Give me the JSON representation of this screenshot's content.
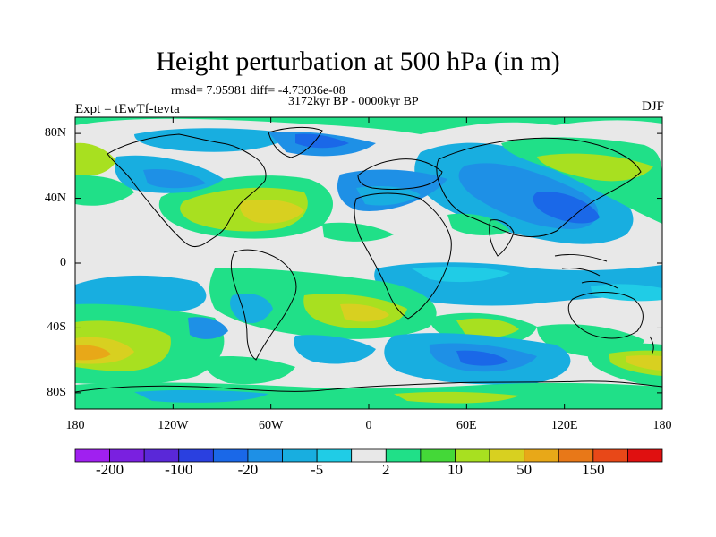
{
  "title": "Height perturbation at 500 hPa (in m)",
  "rmsd_line": "rmsd= 7.95981 diff= -4.73036e-08",
  "period": "3172kyr BP - 0000kyr BP",
  "experiment": "Expt = tEwTf-tevta",
  "season": "DJF",
  "map": {
    "projection": "cylindrical equidistant",
    "lon_range": [
      -180,
      180
    ],
    "lat_range": [
      -90,
      90
    ],
    "lat_ticks": [
      {
        "value": 80,
        "label": "80N"
      },
      {
        "value": 40,
        "label": "40N"
      },
      {
        "value": 0,
        "label": "0"
      },
      {
        "value": -40,
        "label": "40S"
      },
      {
        "value": -80,
        "label": "80S"
      }
    ],
    "lon_ticks": [
      {
        "value": -180,
        "label": "180"
      },
      {
        "value": -120,
        "label": "120W"
      },
      {
        "value": -60,
        "label": "60W"
      },
      {
        "value": 0,
        "label": "0"
      },
      {
        "value": 60,
        "label": "60E"
      },
      {
        "value": 120,
        "label": "120E"
      },
      {
        "value": 180,
        "label": "180"
      }
    ]
  },
  "colorbar": {
    "colors": [
      "#a020f0",
      "#7a20e0",
      "#5a28d8",
      "#2a40e0",
      "#1a68e8",
      "#1e90e6",
      "#18aee0",
      "#20cce6",
      "#e8e8e8",
      "#20e088",
      "#44d838",
      "#a8e020",
      "#d8d020",
      "#e8a818",
      "#e87818",
      "#e84818",
      "#e01010"
    ],
    "labels": [
      {
        "index": 1,
        "text": "-200"
      },
      {
        "index": 3,
        "text": "-100"
      },
      {
        "index": 5,
        "text": "-20"
      },
      {
        "index": 7,
        "text": "-5"
      },
      {
        "index": 9,
        "text": "2"
      },
      {
        "index": 11,
        "text": "10"
      },
      {
        "index": 13,
        "text": "50"
      },
      {
        "index": 15,
        "text": "150"
      }
    ]
  },
  "field_colors": {
    "ocean_bg": "#e8e8e8",
    "green": "#20e088",
    "lime": "#a8e020",
    "yellow": "#d8d020",
    "orange": "#e8a818",
    "cyan": "#20cce6",
    "lightblue": "#18aee0",
    "blue": "#1e90e6",
    "darkblue": "#1a68e8"
  }
}
